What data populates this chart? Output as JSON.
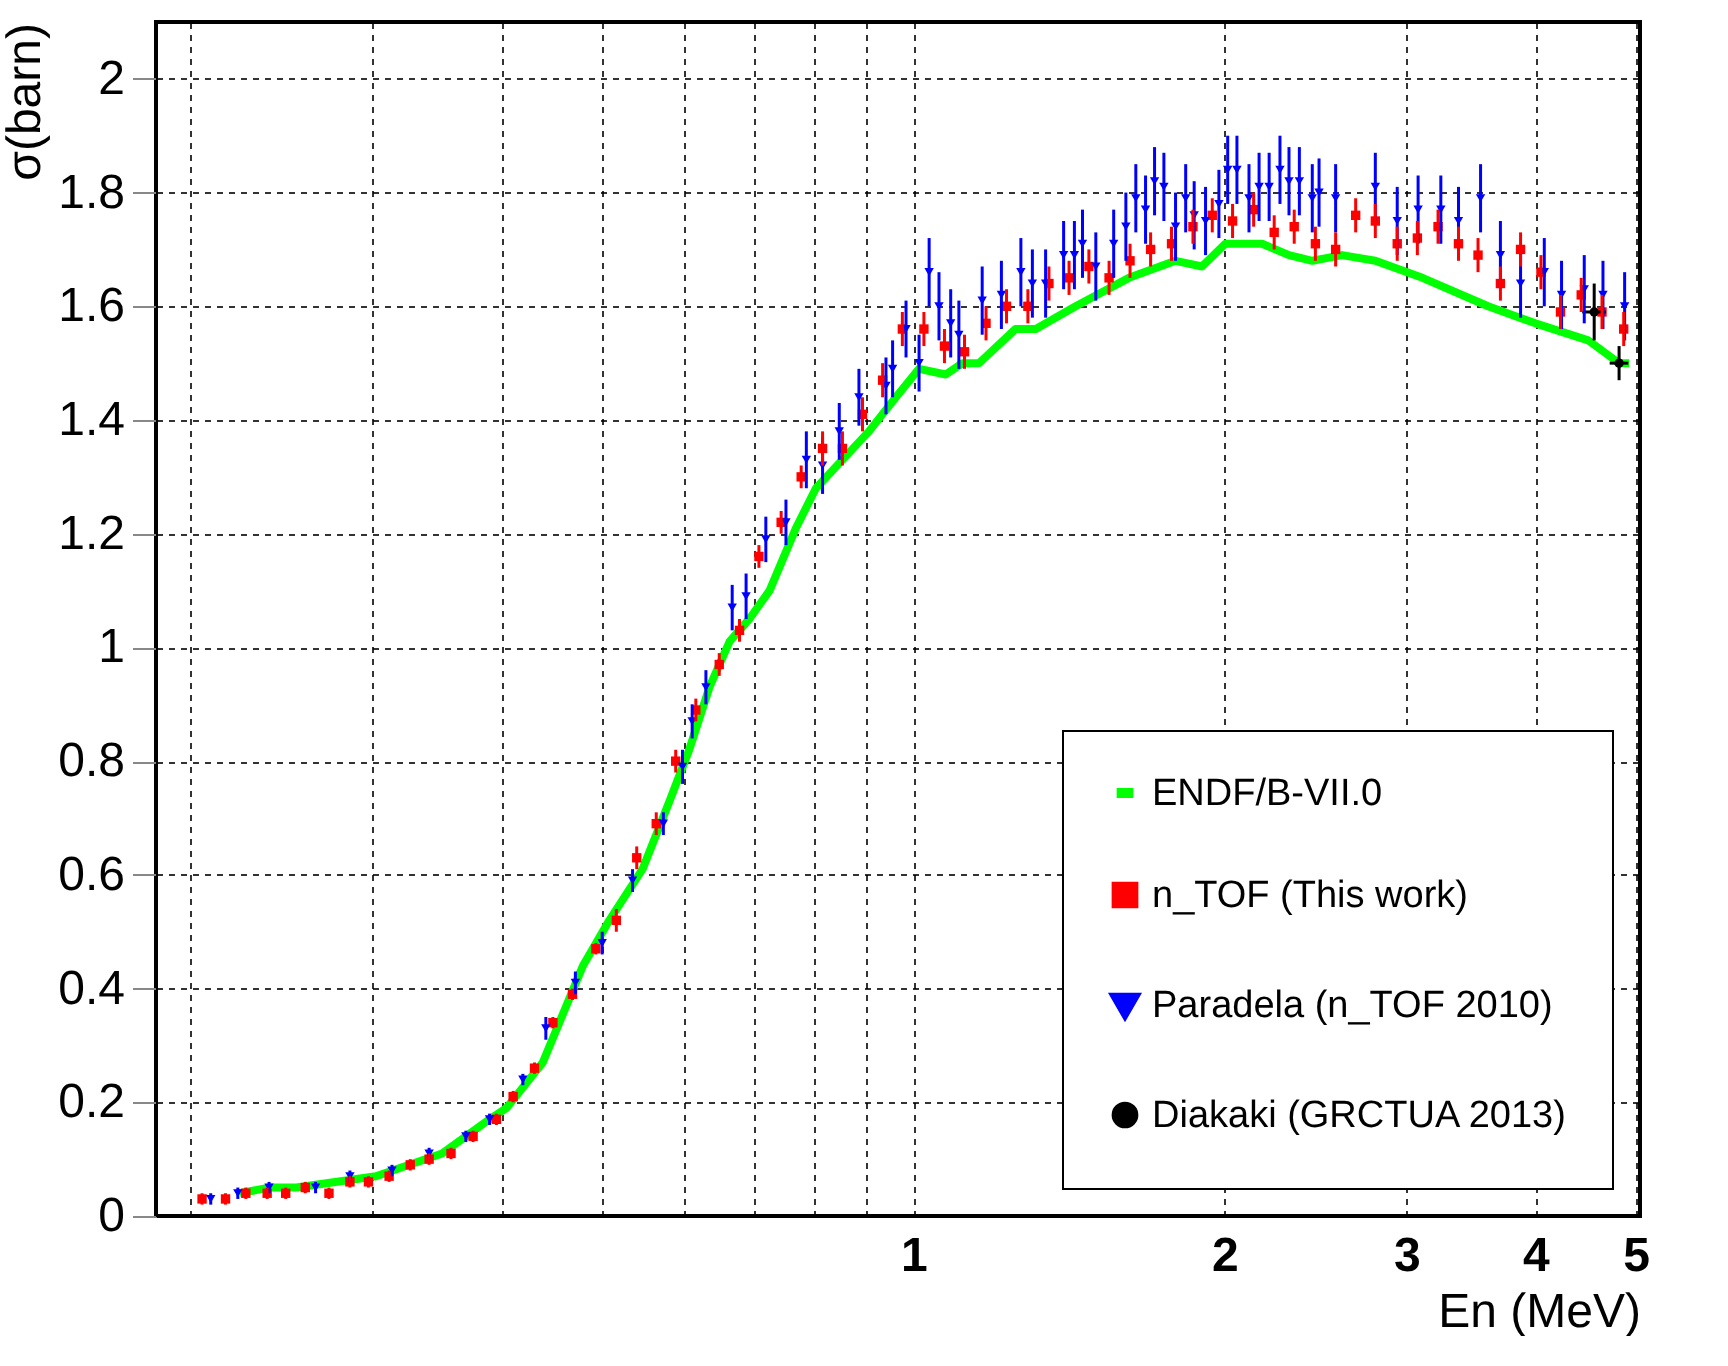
{
  "chart_data": {
    "type": "scatter",
    "xlabel": "En (MeV)",
    "ylabel": "σ(barn)",
    "log": "x",
    "grid": true,
    "legend": "bottom right",
    "xlim": [
      0.185,
      5.05
    ],
    "ylim": [
      0,
      2.1
    ],
    "xticks": [
      {
        "value": 0.2,
        "label": null
      },
      {
        "value": 0.3,
        "label": null
      },
      {
        "value": 0.4,
        "label": null
      },
      {
        "value": 0.5,
        "label": null
      },
      {
        "value": 0.6,
        "label": null
      },
      {
        "value": 0.7,
        "label": null
      },
      {
        "value": 0.8,
        "label": null
      },
      {
        "value": 0.9,
        "label": null
      },
      1,
      2,
      3,
      4,
      5
    ],
    "yticks": [
      0,
      0.2,
      0.4,
      0.6,
      0.8,
      1,
      1.2,
      1.4,
      1.6,
      1.8,
      2
    ],
    "series": [
      {
        "name": "ENDF/B-VII.0",
        "type": "line",
        "line_style": "solid",
        "marker": "none",
        "color": "#00ff00",
        "x": [
          0.223,
          0.238,
          0.253,
          0.302,
          0.35,
          0.389,
          0.404,
          0.438,
          0.479,
          0.508,
          0.547,
          0.581,
          0.607,
          0.635,
          0.664,
          0.694,
          0.726,
          0.77,
          0.805,
          0.906,
          0.962,
          1.013,
          1.075,
          1.116,
          1.158,
          1.256,
          1.314,
          1.436,
          1.617,
          1.794,
          1.903,
          2.005,
          2.175,
          2.31,
          2.433,
          2.6,
          2.8,
          3.11,
          3.6,
          4.0,
          4.5,
          4.82,
          4.93
        ],
        "values": [
          0.04,
          0.05,
          0.05,
          0.07,
          0.11,
          0.17,
          0.19,
          0.27,
          0.44,
          0.52,
          0.61,
          0.73,
          0.82,
          0.93,
          1.01,
          1.05,
          1.1,
          1.21,
          1.28,
          1.38,
          1.44,
          1.49,
          1.48,
          1.5,
          1.5,
          1.56,
          1.56,
          1.6,
          1.65,
          1.68,
          1.67,
          1.71,
          1.71,
          1.69,
          1.68,
          1.69,
          1.68,
          1.65,
          1.6,
          1.57,
          1.54,
          1.5,
          1.5
        ]
      },
      {
        "name": "n_TOF (This work)",
        "marker": "square",
        "color": "#ff0000",
        "x": [
          0.205,
          0.216,
          0.226,
          0.237,
          0.247,
          0.258,
          0.272,
          0.285,
          0.297,
          0.311,
          0.326,
          0.34,
          0.357,
          0.375,
          0.395,
          0.41,
          0.43,
          0.448,
          0.468,
          0.493,
          0.516,
          0.54,
          0.564,
          0.589,
          0.616,
          0.649,
          0.679,
          0.709,
          0.745,
          0.779,
          0.817,
          0.854,
          0.893,
          0.934,
          0.976,
          1.024,
          1.072,
          1.121,
          1.176,
          1.231,
          1.291,
          1.353,
          1.415,
          1.479,
          1.547,
          1.621,
          1.697,
          1.778,
          1.865,
          1.947,
          2.037,
          2.135,
          2.235,
          2.337,
          2.45,
          2.563,
          2.68,
          2.8,
          2.94,
          3.075,
          3.22,
          3.37,
          3.52,
          3.7,
          3.87,
          4.05,
          4.23,
          4.43,
          4.64,
          4.87
        ],
        "values": [
          0.03,
          0.03,
          0.04,
          0.04,
          0.04,
          0.05,
          0.04,
          0.06,
          0.06,
          0.07,
          0.09,
          0.1,
          0.11,
          0.14,
          0.17,
          0.21,
          0.26,
          0.34,
          0.39,
          0.47,
          0.52,
          0.63,
          0.69,
          0.8,
          0.89,
          0.97,
          1.03,
          1.16,
          1.22,
          1.3,
          1.35,
          1.35,
          1.41,
          1.47,
          1.56,
          1.56,
          1.53,
          1.52,
          1.57,
          1.6,
          1.6,
          1.64,
          1.65,
          1.67,
          1.65,
          1.68,
          1.7,
          1.71,
          1.74,
          1.76,
          1.75,
          1.77,
          1.73,
          1.74,
          1.71,
          1.7,
          1.76,
          1.75,
          1.71,
          1.72,
          1.74,
          1.71,
          1.69,
          1.64,
          1.7,
          1.66,
          1.59,
          1.62,
          1.59,
          1.56
        ],
        "errors": [
          0.01,
          0.01,
          0.01,
          0.01,
          0.01,
          0.01,
          0.01,
          0.01,
          0.01,
          0.01,
          0.01,
          0.01,
          0.01,
          0.01,
          0.01,
          0.01,
          0.01,
          0.01,
          0.01,
          0.01,
          0.02,
          0.02,
          0.02,
          0.02,
          0.02,
          0.02,
          0.02,
          0.02,
          0.02,
          0.02,
          0.03,
          0.03,
          0.03,
          0.03,
          0.03,
          0.03,
          0.03,
          0.03,
          0.03,
          0.03,
          0.03,
          0.03,
          0.03,
          0.03,
          0.03,
          0.03,
          0.03,
          0.03,
          0.03,
          0.03,
          0.03,
          0.03,
          0.03,
          0.03,
          0.03,
          0.03,
          0.03,
          0.03,
          0.03,
          0.03,
          0.03,
          0.03,
          0.03,
          0.03,
          0.03,
          0.03,
          0.03,
          0.03,
          0.03,
          0.03
        ]
      },
      {
        "name": "Paradela (n_TOF 2010)",
        "marker": "triangle",
        "color": "#0000ff",
        "x": [
          0.209,
          0.222,
          0.238,
          0.264,
          0.285,
          0.313,
          0.34,
          0.369,
          0.389,
          0.419,
          0.441,
          0.471,
          0.5,
          0.535,
          0.573,
          0.598,
          0.611,
          0.63,
          0.668,
          0.689,
          0.72,
          0.753,
          0.788,
          0.817,
          0.848,
          0.886,
          0.941,
          0.955,
          0.984,
          1.013,
          1.036,
          1.059,
          1.087,
          1.107,
          1.166,
          1.217,
          1.271,
          1.304,
          1.343,
          1.398,
          1.432,
          1.458,
          1.502,
          1.563,
          1.606,
          1.642,
          1.678,
          1.712,
          1.748,
          1.794,
          1.835,
          1.87,
          1.918,
          1.976,
          2.015,
          2.057,
          2.113,
          2.161,
          2.21,
          2.264,
          2.31,
          2.364,
          2.433,
          2.47,
          2.563,
          2.8,
          2.94,
          3.08,
          3.24,
          3.37,
          3.54,
          3.7,
          3.87,
          4.08,
          4.24,
          4.46,
          4.65,
          4.88
        ],
        "values": [
          0.03,
          0.04,
          0.05,
          0.05,
          0.07,
          0.08,
          0.11,
          0.14,
          0.17,
          0.24,
          0.33,
          0.41,
          0.48,
          0.59,
          0.69,
          0.79,
          0.87,
          0.93,
          1.07,
          1.09,
          1.19,
          1.22,
          1.33,
          1.32,
          1.38,
          1.44,
          1.46,
          1.49,
          1.56,
          1.5,
          1.66,
          1.6,
          1.57,
          1.55,
          1.61,
          1.62,
          1.66,
          1.64,
          1.64,
          1.69,
          1.69,
          1.71,
          1.67,
          1.71,
          1.74,
          1.79,
          1.77,
          1.82,
          1.81,
          1.74,
          1.79,
          1.76,
          1.75,
          1.78,
          1.84,
          1.84,
          1.79,
          1.81,
          1.81,
          1.84,
          1.82,
          1.82,
          1.79,
          1.8,
          1.79,
          1.81,
          1.75,
          1.77,
          1.77,
          1.75,
          1.79,
          1.69,
          1.64,
          1.66,
          1.62,
          1.63,
          1.62,
          1.6
        ],
        "errors": [
          0.01,
          0.01,
          0.01,
          0.01,
          0.01,
          0.01,
          0.01,
          0.01,
          0.01,
          0.01,
          0.02,
          0.02,
          0.02,
          0.02,
          0.02,
          0.03,
          0.03,
          0.03,
          0.04,
          0.04,
          0.04,
          0.04,
          0.05,
          0.05,
          0.05,
          0.05,
          0.05,
          0.05,
          0.05,
          0.05,
          0.06,
          0.06,
          0.06,
          0.06,
          0.06,
          0.06,
          0.06,
          0.06,
          0.06,
          0.06,
          0.06,
          0.06,
          0.06,
          0.06,
          0.06,
          0.06,
          0.06,
          0.06,
          0.06,
          0.06,
          0.06,
          0.06,
          0.06,
          0.06,
          0.06,
          0.06,
          0.06,
          0.06,
          0.06,
          0.06,
          0.06,
          0.06,
          0.06,
          0.06,
          0.06,
          0.06,
          0.06,
          0.06,
          0.06,
          0.06,
          0.06,
          0.06,
          0.06,
          0.06,
          0.06,
          0.06,
          0.06,
          0.06
        ]
      },
      {
        "name": "Diakaki (GRCTUA 2013)",
        "marker": "circle",
        "color": "#000000",
        "x": [
          4.56,
          4.82
        ],
        "values": [
          1.59,
          1.5
        ],
        "errors": [
          0.05,
          0.03
        ],
        "xerrors": [
          0.12,
          0.1
        ]
      }
    ]
  }
}
